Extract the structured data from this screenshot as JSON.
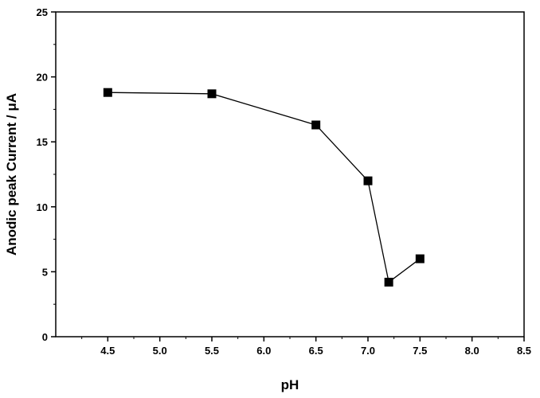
{
  "chart_data": {
    "type": "line",
    "xlabel": "pH",
    "ylabel": "Anodic peak Current / μA",
    "xlim": [
      4.0,
      8.5
    ],
    "ylim": [
      0,
      25
    ],
    "x_ticks": [
      "4.5",
      "5.0",
      "5.5",
      "6.0",
      "6.5",
      "7.0",
      "7.5",
      "8.0",
      "8.5"
    ],
    "y_ticks": [
      "0",
      "5",
      "10",
      "15",
      "20",
      "25"
    ],
    "grid": false,
    "marker": "square",
    "series": [
      {
        "x": [
          4.5,
          5.5,
          6.5,
          7.0,
          7.2,
          7.5
        ],
        "values": [
          18.8,
          18.7,
          16.3,
          12.0,
          4.2,
          6.0
        ]
      }
    ],
    "colors": {
      "line": "#000000",
      "marker": "#000000"
    }
  }
}
